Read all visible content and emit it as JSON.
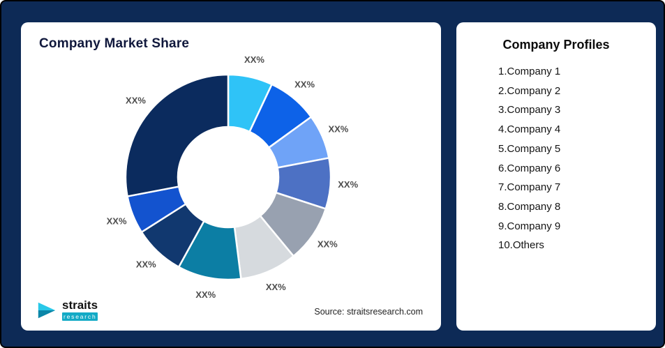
{
  "colors": {
    "background": "#0d2a56",
    "card": "#ffffff",
    "accent_teal": "#14aac6",
    "title_text": "#10183c",
    "label_text": "#4d4d4d"
  },
  "chart_card": {
    "title": "Company Market Share",
    "source": "Source: straitsresearch.com"
  },
  "logo": {
    "brand": "straits",
    "sub": "research"
  },
  "profiles_card": {
    "title": "Company Profiles",
    "items": [
      "1.Company 1",
      "2.Company 2",
      "3.Company 3",
      "4.Company 4",
      "5.Company 5",
      "6.Company 6",
      "7.Company 7",
      "8.Company 8",
      "9.Company 9",
      "10.Others"
    ]
  },
  "chart_data": {
    "type": "pie",
    "subtype": "donut",
    "title": "Company Market Share",
    "inner_radius_ratio": 0.49,
    "start_angle_deg": 0,
    "direction": "clockwise",
    "data_label_text": "XX%",
    "legend_position": "none",
    "slices": [
      {
        "name": "Company 1",
        "value": 7,
        "label": "XX%",
        "color": "#2fc3f7"
      },
      {
        "name": "Company 2",
        "value": 8,
        "label": "XX%",
        "color": "#0d62e8"
      },
      {
        "name": "Company 3",
        "value": 7,
        "label": "XX%",
        "color": "#6fa3f7"
      },
      {
        "name": "Company 4",
        "value": 8,
        "label": "XX%",
        "color": "#4d71c4"
      },
      {
        "name": "Company 5",
        "value": 9,
        "label": "XX%",
        "color": "#98a1b0"
      },
      {
        "name": "Company 6",
        "value": 9,
        "label": "XX%",
        "color": "#d6dade"
      },
      {
        "name": "Company 7",
        "value": 10,
        "label": "XX%",
        "color": "#0c7ea4"
      },
      {
        "name": "Company 8",
        "value": 8,
        "label": "XX%",
        "color": "#11386f"
      },
      {
        "name": "Company 9",
        "value": 6,
        "label": "XX%",
        "color": "#1353cf"
      },
      {
        "name": "Others",
        "value": 28,
        "label": "XX%",
        "color": "#0b2b5e"
      }
    ]
  }
}
